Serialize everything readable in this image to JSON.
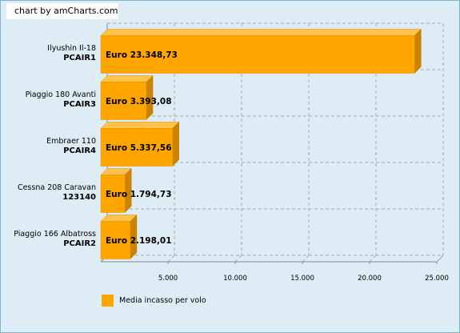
{
  "credit": "chart by amCharts.com",
  "chart_data": {
    "type": "bar",
    "orientation": "horizontal",
    "style": "3d",
    "categories": [
      {
        "name": "Ilyushin Il-18",
        "code": "PCAIR1"
      },
      {
        "name": "Piaggio 180 Avanti",
        "code": "PCAIR3"
      },
      {
        "name": "Embraer 110",
        "code": "PCAIR4"
      },
      {
        "name": "Cessna 208 Caravan",
        "code": "123140"
      },
      {
        "name": "Piaggio 166 Albatross",
        "code": "PCAIR2"
      }
    ],
    "series": [
      {
        "name": "Media incasso per volo",
        "color": "#ffa500",
        "values": [
          23348.73,
          3393.08,
          5337.56,
          1794.73,
          2198.01
        ],
        "labels": [
          "Euro 23.348,73",
          "Euro 3.393,08",
          "Euro 5.337,56",
          "Euro 1.794,73",
          "Euro 2.198,01"
        ]
      }
    ],
    "x_ticks": [
      {
        "value": 5000,
        "label": "5.000"
      },
      {
        "value": 10000,
        "label": "10.000"
      },
      {
        "value": 15000,
        "label": "15.000"
      },
      {
        "value": 20000,
        "label": "20.000"
      },
      {
        "value": 25000,
        "label": "25.000"
      }
    ],
    "xlim": [
      0,
      25000
    ],
    "grid": true,
    "legend_position": "bottom-left"
  }
}
